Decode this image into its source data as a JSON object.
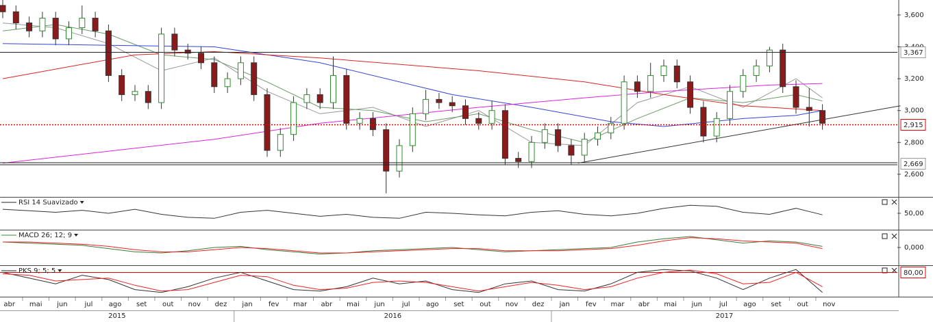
{
  "chart_data": [
    {
      "type": "candlestick",
      "ylim": [
        2.458,
        3.694
      ],
      "yticks": [
        {
          "value": 3.6,
          "label": "3,600"
        },
        {
          "value": 3.4,
          "label": "3,400"
        },
        {
          "value": 3.2,
          "label": "3,200"
        },
        {
          "value": 3.0,
          "label": "3,000"
        },
        {
          "value": 2.8,
          "label": "2,800"
        },
        {
          "value": 2.6,
          "label": "2,600"
        }
      ],
      "x_labels": [
        "abr",
        "mai",
        "jun",
        "jul",
        "ago",
        "set",
        "out",
        "nov",
        "dez",
        "jan",
        "fev",
        "mar",
        "abr",
        "mai",
        "jun",
        "jul",
        "ago",
        "set",
        "out",
        "nov",
        "dez",
        "jan",
        "fev",
        "mar",
        "abr",
        "mai",
        "jun",
        "jul",
        "ago",
        "set",
        "out",
        "nov"
      ],
      "years": [
        "2015",
        "2016",
        "2017"
      ],
      "up_color": "#2e8b2e",
      "down_color": "#8b1a1a",
      "open": [
        3.66,
        3.62,
        3.55,
        3.5,
        3.58,
        3.45,
        3.52,
        3.58,
        3.5,
        3.22,
        3.1,
        3.12,
        3.05,
        3.48,
        3.38,
        3.36,
        3.3,
        3.15,
        3.2,
        3.3,
        3.1,
        2.75,
        2.85,
        3.05,
        3.1,
        3.05,
        3.22,
        2.92,
        2.95,
        2.88,
        2.62,
        2.78,
        2.98,
        3.07,
        3.05,
        3.03,
        2.95,
        2.92,
        3.0,
        2.7,
        2.68,
        2.8,
        2.88,
        2.78,
        2.72,
        2.82,
        2.86,
        2.92,
        3.18,
        3.12,
        3.22,
        3.28,
        3.18,
        3.02,
        2.84,
        2.95,
        3.12,
        3.22,
        3.28,
        3.38,
        3.15,
        3.02,
        3.0
      ],
      "high": [
        3.7,
        3.66,
        3.59,
        3.62,
        3.62,
        3.56,
        3.66,
        3.62,
        3.54,
        3.26,
        3.16,
        3.16,
        3.52,
        3.52,
        3.42,
        3.4,
        3.34,
        3.24,
        3.34,
        3.34,
        3.14,
        2.89,
        3.09,
        3.14,
        3.14,
        3.34,
        3.26,
        2.99,
        2.99,
        2.92,
        2.82,
        3.02,
        3.13,
        3.11,
        3.09,
        3.07,
        2.99,
        3.06,
        3.04,
        2.74,
        2.84,
        2.92,
        2.92,
        2.82,
        2.86,
        2.9,
        2.96,
        3.22,
        3.22,
        3.3,
        3.32,
        3.32,
        3.22,
        3.06,
        2.99,
        3.16,
        3.26,
        3.32,
        3.4,
        3.42,
        3.19,
        3.14,
        3.04
      ],
      "low": [
        3.58,
        3.51,
        3.46,
        3.46,
        3.41,
        3.41,
        3.48,
        3.46,
        3.18,
        3.06,
        3.06,
        3.01,
        3.01,
        3.34,
        3.32,
        3.26,
        3.11,
        3.11,
        3.16,
        3.06,
        2.71,
        2.71,
        2.81,
        3.01,
        3.01,
        3.01,
        2.88,
        2.88,
        2.84,
        2.48,
        2.58,
        2.74,
        2.94,
        3.01,
        2.99,
        2.91,
        2.88,
        2.88,
        2.66,
        2.64,
        2.64,
        2.76,
        2.74,
        2.66,
        2.68,
        2.78,
        2.82,
        2.88,
        3.08,
        3.08,
        3.18,
        3.14,
        2.98,
        2.8,
        2.8,
        2.91,
        3.08,
        3.18,
        3.24,
        3.11,
        2.98,
        2.9,
        2.88
      ],
      "close": [
        3.62,
        3.55,
        3.5,
        3.58,
        3.45,
        3.52,
        3.58,
        3.5,
        3.22,
        3.1,
        3.12,
        3.05,
        3.48,
        3.38,
        3.36,
        3.3,
        3.15,
        3.2,
        3.3,
        3.1,
        2.75,
        2.85,
        3.05,
        3.1,
        3.05,
        3.22,
        2.92,
        2.95,
        2.88,
        2.62,
        2.78,
        2.98,
        3.07,
        3.05,
        3.03,
        2.95,
        2.92,
        3.0,
        2.7,
        2.68,
        2.8,
        2.88,
        2.78,
        2.72,
        2.82,
        2.86,
        2.92,
        3.18,
        3.12,
        3.22,
        3.28,
        3.18,
        3.02,
        2.84,
        2.95,
        3.12,
        3.22,
        3.28,
        3.38,
        3.15,
        3.02,
        3.0,
        2.92
      ],
      "series": [
        {
          "color": "#999999",
          "x": [
            0,
            4,
            8,
            12,
            16,
            20,
            24,
            28,
            32,
            36,
            40,
            44,
            48,
            52,
            56,
            60,
            62
          ],
          "values": [
            3.55,
            3.52,
            3.42,
            3.25,
            3.33,
            3.12,
            2.98,
            3.02,
            2.9,
            3.0,
            2.8,
            2.78,
            3.05,
            3.15,
            3.02,
            3.2,
            3.08
          ]
        },
        {
          "color": "#6a9a6a",
          "x": [
            0,
            4,
            8,
            12,
            16,
            20,
            24,
            28,
            32,
            36,
            40,
            44,
            48,
            52,
            56,
            60,
            62
          ],
          "values": [
            3.5,
            3.54,
            3.48,
            3.35,
            3.32,
            3.18,
            3.02,
            3.0,
            2.93,
            2.98,
            2.88,
            2.8,
            2.95,
            3.08,
            3.05,
            3.1,
            3.06
          ]
        },
        {
          "color": "#3344dd",
          "x": [
            0,
            8,
            16,
            24,
            34,
            40,
            46,
            50,
            56,
            60,
            62
          ],
          "values": [
            3.42,
            3.41,
            3.4,
            3.3,
            3.1,
            3.02,
            2.93,
            2.9,
            2.95,
            2.97,
            3.0
          ]
        },
        {
          "color": "#dd2222",
          "x": [
            0,
            10,
            16,
            24,
            36,
            44,
            50,
            56,
            62
          ],
          "values": [
            3.2,
            3.35,
            3.37,
            3.33,
            3.25,
            3.18,
            3.1,
            3.03,
            3.0
          ]
        },
        {
          "color": "#dd22dd",
          "x": [
            0,
            16,
            24,
            36,
            44,
            50,
            58,
            62
          ],
          "values": [
            2.67,
            2.82,
            2.92,
            3.02,
            3.08,
            3.12,
            3.16,
            3.17
          ]
        }
      ],
      "trendline": {
        "color": "#333333",
        "x": [
          43.5,
          67.9
        ],
        "values": [
          2.67,
          3.03
        ]
      },
      "levels": [
        {
          "value": 3.367,
          "label": "3,367",
          "color": "#222222",
          "style": "solid"
        },
        {
          "value": 2.915,
          "label": "2,915",
          "color": "#dd0000",
          "style": "dotted"
        },
        {
          "value": 2.669,
          "label": "2,669",
          "color": "#222222",
          "style": "double"
        }
      ]
    },
    {
      "type": "line",
      "title": "RSI 14 Suavizado",
      "title_color": "#222222",
      "ylim": [
        20,
        80
      ],
      "yticks": [
        {
          "value": 50,
          "label": "50,00"
        }
      ],
      "x": [
        0,
        2,
        4,
        6,
        8,
        10,
        12,
        14,
        16,
        18,
        20,
        22,
        24,
        26,
        28,
        30,
        32,
        34,
        36,
        38,
        40,
        42,
        44,
        46,
        48,
        50,
        52,
        54,
        56,
        58,
        60,
        62
      ],
      "series": [
        {
          "color": "#333333",
          "values": [
            58,
            55,
            52,
            56,
            50,
            58,
            48,
            42,
            40,
            52,
            56,
            50,
            44,
            48,
            42,
            40,
            52,
            50,
            47,
            45,
            52,
            55,
            48,
            45,
            50,
            60,
            66,
            64,
            52,
            48,
            60,
            47
          ]
        }
      ]
    },
    {
      "type": "line",
      "title": "MACD 26; 12; 9",
      "title_color": "#2e8b2e",
      "ylim": [
        -0.15,
        0.15
      ],
      "yticks": [
        {
          "value": 0,
          "label": "0,000"
        }
      ],
      "x": [
        0,
        2,
        4,
        6,
        8,
        10,
        12,
        14,
        16,
        18,
        20,
        22,
        24,
        26,
        28,
        30,
        32,
        34,
        36,
        38,
        40,
        42,
        44,
        46,
        48,
        50,
        52,
        54,
        56,
        58,
        60,
        62
      ],
      "series": [
        {
          "color": "#3c7a3c",
          "values": [
            0.05,
            0.04,
            0.03,
            0.02,
            -0.01,
            -0.04,
            -0.05,
            -0.03,
            0.0,
            0.01,
            -0.02,
            -0.04,
            -0.06,
            -0.05,
            -0.03,
            -0.02,
            -0.01,
            0.0,
            -0.02,
            -0.04,
            -0.03,
            -0.02,
            -0.01,
            0.0,
            0.05,
            0.08,
            0.1,
            0.07,
            0.04,
            0.06,
            0.05,
            0.01
          ]
        },
        {
          "color": "#ee2222",
          "values": [
            0.05,
            0.05,
            0.04,
            0.03,
            0.01,
            -0.02,
            -0.04,
            -0.04,
            -0.02,
            0.0,
            -0.01,
            -0.03,
            -0.05,
            -0.05,
            -0.04,
            -0.03,
            -0.02,
            -0.01,
            -0.01,
            -0.03,
            -0.03,
            -0.03,
            -0.02,
            -0.01,
            0.02,
            0.06,
            0.09,
            0.08,
            0.06,
            0.05,
            0.04,
            -0.01
          ]
        }
      ]
    },
    {
      "type": "line",
      "title": "PKS 9; 5; 5",
      "title_color": "#222222",
      "ylim": [
        0,
        100
      ],
      "levels": [
        {
          "value": 80,
          "label": "80,00",
          "color": "#dd0000",
          "style": "solid"
        }
      ],
      "x": [
        0,
        2,
        4,
        6,
        8,
        10,
        12,
        14,
        16,
        18,
        20,
        22,
        24,
        26,
        28,
        30,
        32,
        34,
        36,
        38,
        40,
        42,
        44,
        46,
        48,
        50,
        52,
        54,
        56,
        58,
        60,
        62
      ],
      "series": [
        {
          "color": "#333333",
          "values": [
            80,
            60,
            40,
            70,
            55,
            20,
            10,
            30,
            60,
            80,
            50,
            20,
            15,
            30,
            60,
            40,
            50,
            20,
            10,
            40,
            50,
            20,
            15,
            40,
            80,
            90,
            85,
            60,
            20,
            60,
            90,
            10
          ]
        },
        {
          "color": "#ee2222",
          "values": [
            75,
            70,
            50,
            55,
            60,
            35,
            15,
            20,
            45,
            70,
            65,
            35,
            20,
            25,
            45,
            50,
            45,
            30,
            15,
            30,
            45,
            35,
            20,
            30,
            60,
            80,
            88,
            75,
            40,
            45,
            80,
            30
          ]
        }
      ]
    }
  ]
}
